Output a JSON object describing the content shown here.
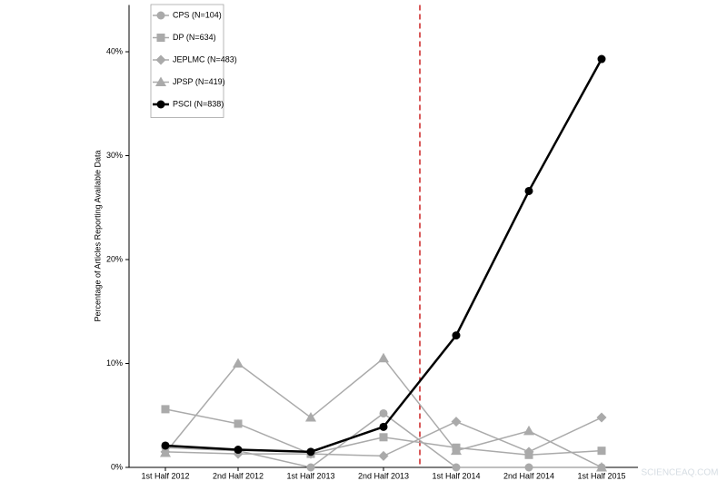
{
  "chart_data": {
    "type": "line",
    "y_label": "Percentage of Articles Reporting Available Data",
    "categories": [
      "1st Half 2012",
      "2nd Half 2012",
      "1st Half 2013",
      "2nd Half 2013",
      "1st Half 2014",
      "2nd Half 2014",
      "1st Half 2015"
    ],
    "series": [
      {
        "name": "CPS (N=104)",
        "color": "#aaaaaa",
        "marker": "circle",
        "values": [
          1.9,
          1.6,
          0,
          5.2,
          0,
          0,
          0
        ]
      },
      {
        "name": "DP (N=634)",
        "color": "#aaaaaa",
        "marker": "square",
        "values": [
          5.6,
          4.2,
          1.3,
          2.9,
          1.9,
          1.2,
          1.6
        ]
      },
      {
        "name": "JEPLMC (N=483)",
        "color": "#aaaaaa",
        "marker": "diamond",
        "values": [
          1.5,
          1.3,
          1.3,
          1.1,
          4.4,
          1.5,
          4.8
        ]
      },
      {
        "name": "JPSP (N=419)",
        "color": "#aaaaaa",
        "marker": "triangle",
        "values": [
          1.4,
          10.0,
          4.8,
          10.5,
          1.6,
          3.5,
          0
        ]
      },
      {
        "name": "PSCI (N=838)",
        "color": "#000000",
        "marker": "circle",
        "values": [
          2.1,
          1.7,
          1.5,
          3.9,
          12.7,
          26.6,
          39.3
        ]
      }
    ],
    "ylim": [
      0,
      44.5
    ],
    "yticks": [
      {
        "value": 0,
        "label": "0%"
      },
      {
        "value": 10,
        "label": "10%"
      },
      {
        "value": 20,
        "label": "20%"
      },
      {
        "value": 30,
        "label": "30%"
      },
      {
        "value": 40,
        "label": "40%"
      }
    ],
    "reference_line_x": 3.5,
    "reference_line_color": "#cc2222",
    "legend": "top-left",
    "watermark": "SCIENCEAQ.COM"
  }
}
